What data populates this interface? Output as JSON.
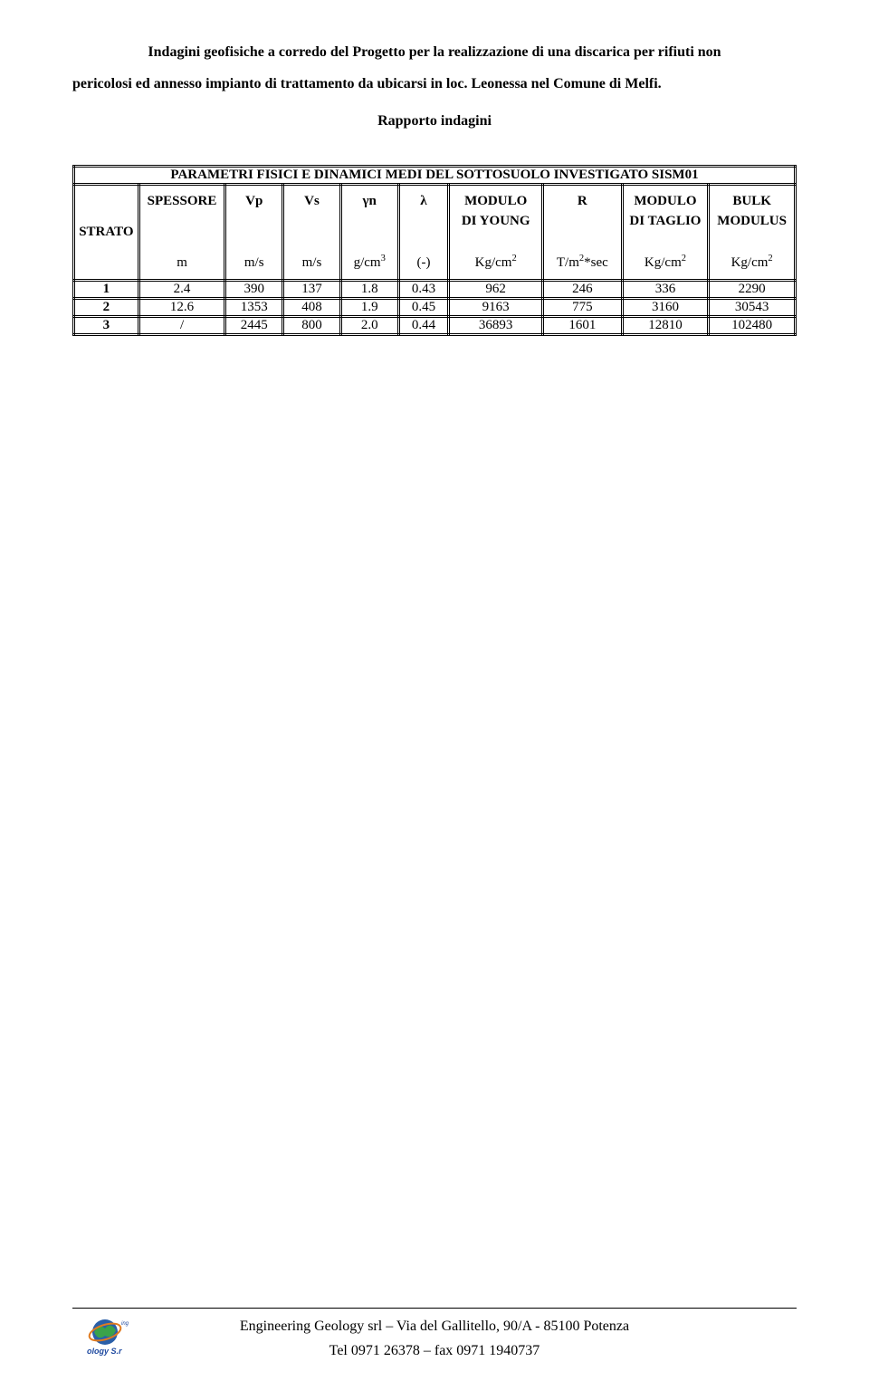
{
  "header": {
    "line1": "Indagini geofisiche a corredo del Progetto per la realizzazione di una discarica per rifiuti non",
    "line2": "pericolosi ed annesso impianto di trattamento da ubicarsi in loc. Leonessa nel Comune di Melfi.",
    "line3": "Rapporto indagini"
  },
  "table": {
    "title": "PARAMETRI FISICI E DINAMICI MEDI DEL SOTTOSUOLO INVESTIGATO SISM01",
    "columns": {
      "strato": {
        "label": "STRATO",
        "unit": ""
      },
      "spessore": {
        "label": "SPESSORE",
        "unit": "m"
      },
      "vp": {
        "label": "Vp",
        "unit": "m/s"
      },
      "vs": {
        "label": "Vs",
        "unit": "m/s"
      },
      "gamma_n": {
        "label": "γn",
        "unit_html": "g/cm<sup>3</sup>"
      },
      "lambda": {
        "label": "λ",
        "unit": "(-)"
      },
      "young": {
        "label1": "MODULO",
        "label2": "DI YOUNG",
        "unit_html": "Kg/cm<sup>2</sup>"
      },
      "r": {
        "label": "R",
        "unit_html": "T/m<sup>2</sup>*sec"
      },
      "taglio": {
        "label1": "MODULO",
        "label2": "DI TAGLIO",
        "unit_html": "Kg/cm<sup>2</sup>"
      },
      "bulk": {
        "label1": "BULK",
        "label2": "MODULUS",
        "unit_html": "Kg/cm<sup>2</sup>"
      }
    },
    "rows": [
      {
        "strato": "1",
        "spessore": "2.4",
        "vp": "390",
        "vs": "137",
        "gamma_n": "1.8",
        "lambda": "0.43",
        "young": "962",
        "r": "246",
        "taglio": "336",
        "bulk": "2290"
      },
      {
        "strato": "2",
        "spessore": "12.6",
        "vp": "1353",
        "vs": "408",
        "gamma_n": "1.9",
        "lambda": "0.45",
        "young": "9163",
        "r": "775",
        "taglio": "3160",
        "bulk": "30543"
      },
      {
        "strato": "3",
        "spessore": "/",
        "vp": "2445",
        "vs": "800",
        "gamma_n": "2.0",
        "lambda": "0.44",
        "young": "36893",
        "r": "1601",
        "taglio": "12810",
        "bulk": "102480"
      }
    ],
    "col_widths_pct": [
      9,
      12,
      8,
      8,
      8,
      7,
      13,
      11,
      12,
      12
    ],
    "border_color": "#000000",
    "background_color": "#ffffff",
    "title_fontsize_pt": 12,
    "header_fontsize_pt": 11,
    "cell_fontsize_pt": 12
  },
  "footer": {
    "line1": "Engineering Geology srl – Via del Gallitello, 90/A   - 85100 Potenza",
    "line2": "Tel 0971 26378 – fax 0971 1940737",
    "logo_colors": {
      "globe_blue": "#2a5fa8",
      "land_green": "#3aa24a",
      "ring_orange": "#e07b1f",
      "text_blue": "#1f4aa0"
    }
  }
}
